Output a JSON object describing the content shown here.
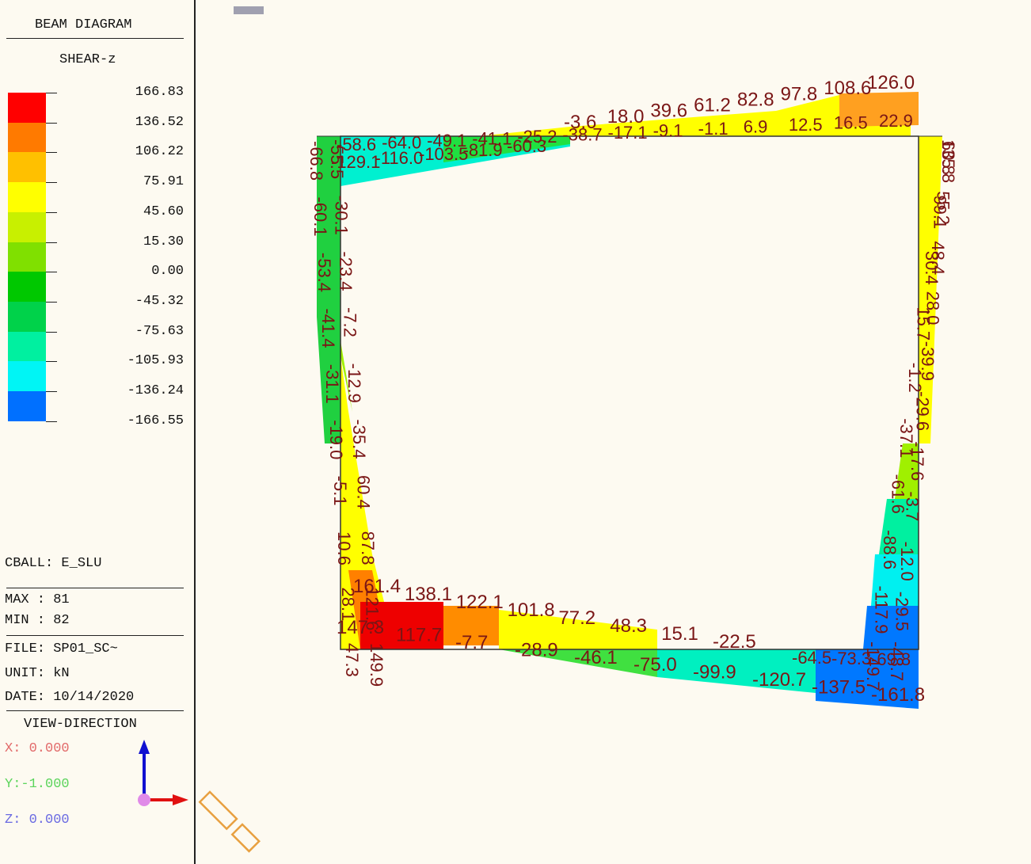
{
  "sidebar": {
    "title": "BEAM DIAGRAM",
    "component": "SHEAR-z",
    "legend_values": [
      "166.83",
      "136.52",
      "106.22",
      "75.91",
      "45.60",
      "15.30",
      "0.00",
      "-45.32",
      "-75.63",
      "-105.93",
      "-136.24",
      "-166.55"
    ],
    "legend_colors": [
      "#ff0000",
      "#ff7a00",
      "#ffc000",
      "#ffff00",
      "#c8f000",
      "#80e000",
      "#00c800",
      "#00d24a",
      "#00f0a0",
      "#00f5f5",
      "#0070ff"
    ],
    "load_comb": "CBALL: E_SLU",
    "max": "MAX : 81",
    "min": "MIN : 82",
    "file": "FILE: SP01_SC~",
    "unit": "UNIT: kN",
    "date": "DATE: 10/14/2020",
    "view_direction": "VIEW-DIRECTION",
    "view_x": "X: 0.000",
    "view_y": "Y:-1.000",
    "view_z": "Z: 0.000"
  },
  "labels": {
    "top_upper": [
      "-3.6",
      "18.0",
      "39.6",
      "61.2",
      "82.8",
      "97.8",
      "108.6",
      "126.0"
    ],
    "top_lower": [
      "-58.6",
      "-64.0",
      "-49.1",
      "-41.1",
      "-25.2",
      "-38.7",
      "-17.1",
      "-9.1",
      "-1.1",
      "6.9",
      "12.5",
      "16.5",
      "22.9"
    ],
    "top_lower_left": [
      "-129.1",
      "-116.0",
      "-103.5",
      "-81.9",
      "-60.3"
    ],
    "left_outer": [
      "-66.8",
      "-60.1",
      "-53.4",
      "-41.4",
      "-31.1",
      "-19.0",
      "-5.1",
      "10.6",
      "28.1",
      "47.3"
    ],
    "left_inner": [
      "-55.5",
      "-30.1",
      "-23.4",
      "-7.2",
      "-12.9",
      "-35.4",
      "60.4",
      "87.8",
      "121.6",
      "149.9"
    ],
    "bottom_upper": [
      "161.4",
      "138.1",
      "122.1",
      "101.8",
      "77.2",
      "48.3",
      "15.1",
      "-22.5"
    ],
    "bottom_lower": [
      "147.3",
      "117.7",
      "-7.7",
      "-28.9",
      "-46.1",
      "-75.0",
      "-99.9",
      "-120.7",
      "-137.5",
      "-161.8"
    ],
    "bottom_right": [
      "-64.5",
      "-73.3",
      "-69.8"
    ],
    "right_outer": [
      "135.8",
      "99.1",
      "30.4",
      "15.7",
      "-1.2",
      "-37.1",
      "-61.6",
      "-88.6",
      "-117.9",
      "-149.7"
    ],
    "right_inner": [
      "60.8",
      "55.2",
      "48.4",
      "28.0",
      "-39.9",
      "-29.6",
      "-17.6",
      "-3.7",
      "-12.0",
      "-29.5",
      "-48.7"
    ]
  }
}
